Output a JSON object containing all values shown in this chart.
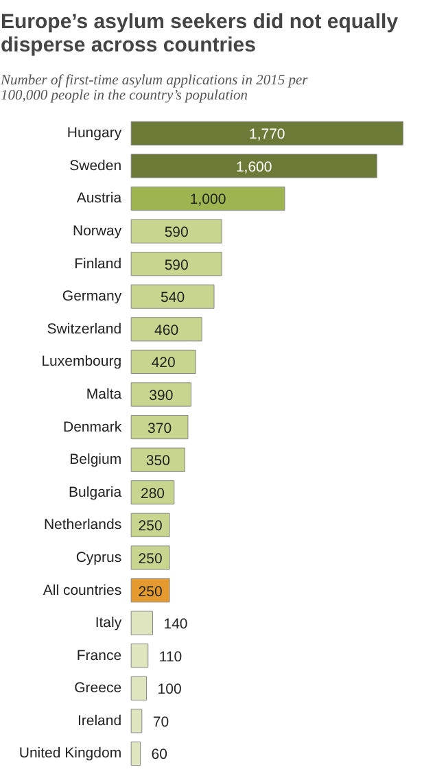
{
  "chart_data": {
    "type": "bar",
    "orientation": "horizontal",
    "title": "Europe’s asylum seekers did not equally\ndisperse across countries",
    "subtitle": "Number of first-time asylum applications in 2015 per\n100,000 people in the country’s population",
    "categories": [
      "Hungary",
      "Sweden",
      "Austria",
      "Norway",
      "Finland",
      "Germany",
      "Switzerland",
      "Luxembourg",
      "Malta",
      "Denmark",
      "Belgium",
      "Bulgaria",
      "Netherlands",
      "Cyprus",
      "All countries",
      "Italy",
      "France",
      "Greece",
      "Ireland",
      "United Kingdom"
    ],
    "values": [
      1770,
      1600,
      1000,
      590,
      590,
      540,
      460,
      420,
      390,
      370,
      350,
      280,
      250,
      250,
      250,
      140,
      110,
      100,
      70,
      60
    ],
    "colors": [
      "#6b7a36",
      "#6b7a36",
      "#9db450",
      "#c7d58f",
      "#c7d58f",
      "#c7d58f",
      "#c7d58f",
      "#c7d58f",
      "#c7d58f",
      "#c7d58f",
      "#c7d58f",
      "#c7d58f",
      "#c7d58f",
      "#c7d58f",
      "#e59a2f",
      "#dfe5bf",
      "#dfe5bf",
      "#dfe5bf",
      "#dfe5bf",
      "#dfe5bf"
    ],
    "value_labels": [
      "1,770",
      "1,600",
      "1,000",
      "590",
      "590",
      "540",
      "460",
      "420",
      "390",
      "370",
      "350",
      "280",
      "250",
      "250",
      "250",
      "140",
      "110",
      "100",
      "70",
      "60"
    ]
  }
}
